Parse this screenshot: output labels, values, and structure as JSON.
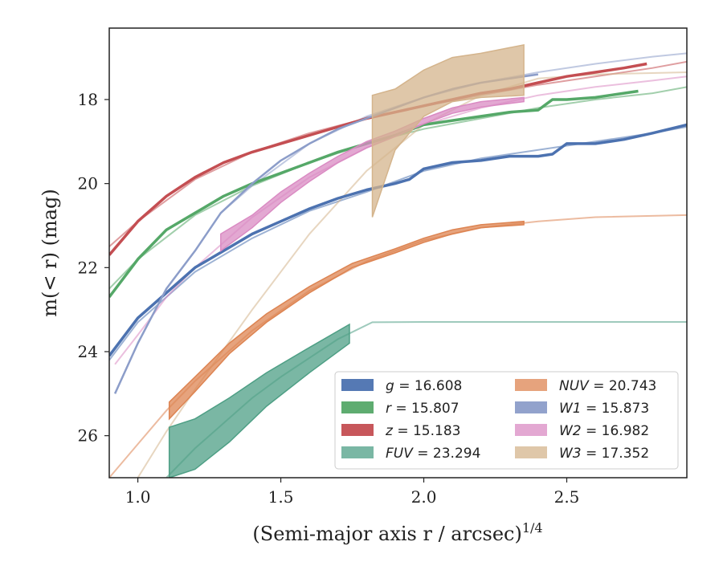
{
  "chart_data": {
    "type": "line",
    "xlabel": "(Semi-major axis r / arcsec)",
    "xlabel_sup": "1/4",
    "ylabel": "m(< r) (mag)",
    "xlim": [
      0.9,
      2.92
    ],
    "ylim": [
      27.0,
      16.3
    ],
    "y_inverted": true,
    "xticks": [
      1.0,
      1.5,
      2.0,
      2.5
    ],
    "xtick_labels": [
      "1.0",
      "1.5",
      "2.0",
      "2.5"
    ],
    "yticks": [
      18,
      20,
      22,
      24,
      26
    ],
    "ytick_labels": [
      "18",
      "20",
      "22",
      "24",
      "26"
    ],
    "legend_position": "bottom-right",
    "series": [
      {
        "name": "g = 16.608",
        "band": "g",
        "value": "16.608",
        "color": "#4c72b0",
        "kind": "line",
        "x": [
          0.9,
          1.0,
          1.1,
          1.2,
          1.3,
          1.4,
          1.5,
          1.6,
          1.7,
          1.8,
          1.9,
          1.95,
          2.0,
          2.1,
          2.2,
          2.3,
          2.4,
          2.45,
          2.5,
          2.6,
          2.7,
          2.8,
          2.92
        ],
        "y": [
          24.1,
          23.2,
          22.6,
          22.0,
          21.6,
          21.2,
          20.9,
          20.6,
          20.35,
          20.15,
          20.0,
          19.9,
          19.65,
          19.5,
          19.45,
          19.35,
          19.35,
          19.3,
          19.05,
          19.05,
          18.95,
          18.8,
          18.6
        ],
        "model_x": [
          0.9,
          1.0,
          1.2,
          1.4,
          1.6,
          1.8,
          2.0,
          2.2,
          2.4,
          2.6,
          2.8,
          2.92
        ],
        "model_y": [
          24.2,
          23.3,
          22.1,
          21.3,
          20.65,
          20.2,
          19.7,
          19.4,
          19.2,
          19.0,
          18.8,
          18.65
        ]
      },
      {
        "name": "r = 15.807",
        "band": "r",
        "value": "15.807",
        "color": "#55a868",
        "kind": "line",
        "x": [
          0.9,
          1.0,
          1.1,
          1.2,
          1.3,
          1.4,
          1.5,
          1.6,
          1.7,
          1.8,
          1.9,
          2.0,
          2.1,
          2.2,
          2.3,
          2.4,
          2.45,
          2.5,
          2.6,
          2.7,
          2.75
        ],
        "y": [
          22.7,
          21.8,
          21.1,
          20.7,
          20.3,
          20.0,
          19.75,
          19.5,
          19.25,
          19.05,
          18.85,
          18.6,
          18.5,
          18.4,
          18.3,
          18.25,
          18.0,
          18.0,
          17.95,
          17.85,
          17.8
        ],
        "model_x": [
          0.9,
          1.0,
          1.2,
          1.4,
          1.6,
          1.8,
          2.0,
          2.2,
          2.4,
          2.6,
          2.8,
          2.92
        ],
        "model_y": [
          22.5,
          21.8,
          20.75,
          20.05,
          19.5,
          19.05,
          18.7,
          18.45,
          18.2,
          18.0,
          17.85,
          17.7
        ]
      },
      {
        "name": "z = 15.183",
        "band": "z",
        "value": "15.183",
        "color": "#c44e52",
        "kind": "line",
        "x": [
          0.9,
          1.0,
          1.1,
          1.2,
          1.3,
          1.4,
          1.5,
          1.6,
          1.7,
          1.8,
          1.9,
          2.0,
          2.1,
          2.2,
          2.3,
          2.4,
          2.5,
          2.6,
          2.7,
          2.78
        ],
        "y": [
          21.7,
          20.9,
          20.3,
          19.85,
          19.5,
          19.25,
          19.05,
          18.85,
          18.65,
          18.45,
          18.3,
          18.15,
          18.0,
          17.85,
          17.75,
          17.6,
          17.45,
          17.35,
          17.25,
          17.15
        ],
        "model_x": [
          0.9,
          1.0,
          1.2,
          1.4,
          1.6,
          1.8,
          2.0,
          2.2,
          2.4,
          2.6,
          2.8,
          2.92
        ],
        "model_y": [
          21.5,
          20.9,
          19.9,
          19.25,
          18.8,
          18.45,
          18.15,
          17.9,
          17.65,
          17.45,
          17.25,
          17.1
        ]
      },
      {
        "name": "FUV = 23.294",
        "band": "FUV",
        "value": "23.294",
        "color": "#4e9f85",
        "kind": "band",
        "x": [
          1.11,
          1.2,
          1.32,
          1.45,
          1.6,
          1.74
        ],
        "y_upper": [
          25.8,
          25.6,
          25.1,
          24.5,
          23.9,
          23.35
        ],
        "y_lower": [
          27.0,
          26.8,
          26.15,
          25.3,
          24.5,
          23.8
        ],
        "model_x": [
          1.1,
          1.2,
          1.3,
          1.4,
          1.5,
          1.6,
          1.7,
          1.82,
          2.0,
          2.5,
          2.92
        ],
        "model_y": [
          27.0,
          26.3,
          25.7,
          25.1,
          24.6,
          24.15,
          23.7,
          23.3,
          23.294,
          23.294,
          23.294
        ]
      },
      {
        "name": "NUV = 20.743",
        "band": "NUV",
        "value": "20.743",
        "color": "#dd8452",
        "kind": "band",
        "x": [
          1.11,
          1.2,
          1.32,
          1.45,
          1.6,
          1.75,
          1.9,
          2.0,
          2.1,
          2.2,
          2.35
        ],
        "y_upper": [
          25.2,
          24.6,
          23.8,
          23.1,
          22.45,
          21.9,
          21.55,
          21.3,
          21.1,
          20.98,
          20.9
        ],
        "y_lower": [
          25.6,
          24.95,
          24.05,
          23.3,
          22.6,
          22.0,
          21.65,
          21.4,
          21.2,
          21.05,
          20.98
        ],
        "model_x": [
          0.9,
          1.0,
          1.1,
          1.2,
          1.4,
          1.6,
          1.8,
          2.0,
          2.2,
          2.4,
          2.6,
          2.92
        ],
        "model_y": [
          27.0,
          26.2,
          25.4,
          24.7,
          23.5,
          22.55,
          21.85,
          21.35,
          21.05,
          20.9,
          20.8,
          20.75
        ]
      },
      {
        "name": "W1 = 15.873",
        "band": "W1",
        "value": "15.873",
        "color": "#8c9dc9",
        "kind": "line",
        "x": [
          0.92,
          1.0,
          1.1,
          1.2,
          1.29,
          1.4,
          1.5,
          1.6,
          1.7,
          1.8,
          1.9,
          2.0,
          2.1,
          2.2,
          2.3,
          2.4
        ],
        "y": [
          25.0,
          23.8,
          22.5,
          21.6,
          20.7,
          20.0,
          19.45,
          19.05,
          18.7,
          18.45,
          18.2,
          17.95,
          17.75,
          17.6,
          17.5,
          17.4
        ],
        "model_x": [
          1.29,
          1.4,
          1.6,
          1.8,
          2.0,
          2.2,
          2.4,
          2.6,
          2.8,
          2.92
        ],
        "model_y": [
          20.7,
          20.05,
          19.05,
          18.4,
          17.95,
          17.6,
          17.35,
          17.15,
          16.98,
          16.9
        ]
      },
      {
        "name": "W2 = 16.982",
        "band": "W2",
        "value": "16.982",
        "color": "#da8bc3",
        "kind": "band",
        "x": [
          1.29,
          1.4,
          1.5,
          1.6,
          1.7,
          1.8,
          1.9,
          2.0,
          2.1,
          2.2,
          2.35
        ],
        "y_upper": [
          21.2,
          20.75,
          20.2,
          19.75,
          19.35,
          19.0,
          18.75,
          18.45,
          18.2,
          18.05,
          17.95
        ],
        "y_lower": [
          21.6,
          21.05,
          20.45,
          19.95,
          19.5,
          19.15,
          18.88,
          18.58,
          18.33,
          18.18,
          18.05
        ],
        "model_x": [
          0.92,
          1.0,
          1.1,
          1.2,
          1.3,
          1.4,
          1.6,
          1.8,
          2.0,
          2.2,
          2.4,
          2.6,
          2.8,
          2.92
        ],
        "model_y": [
          24.3,
          23.6,
          22.7,
          22.0,
          21.4,
          20.8,
          19.85,
          19.15,
          18.6,
          18.2,
          17.9,
          17.7,
          17.55,
          17.45
        ]
      },
      {
        "name": "W3 = 17.352",
        "band": "W3",
        "value": "17.352",
        "color": "#d4b48c",
        "kind": "band",
        "x": [
          1.82,
          1.9,
          2.0,
          2.1,
          2.2,
          2.35
        ],
        "y_upper": [
          17.9,
          17.75,
          17.3,
          17.0,
          16.9,
          16.7
        ],
        "y_lower": [
          20.8,
          19.2,
          18.4,
          18.05,
          17.95,
          17.9
        ],
        "model_x": [
          1.0,
          1.1,
          1.2,
          1.4,
          1.6,
          1.8,
          2.0,
          2.2,
          2.4,
          2.6,
          2.92
        ],
        "model_y": [
          27.0,
          25.9,
          24.9,
          23.0,
          21.2,
          19.7,
          18.6,
          17.9,
          17.5,
          17.4,
          17.35
        ]
      }
    ],
    "legend": [
      {
        "label": "g",
        "value": "16.608"
      },
      {
        "label": "r",
        "value": "15.807"
      },
      {
        "label": "z",
        "value": "15.183"
      },
      {
        "label": "FUV",
        "value": "23.294"
      },
      {
        "label": "NUV",
        "value": "20.743"
      },
      {
        "label": "W1",
        "value": "15.873"
      },
      {
        "label": "W2",
        "value": "16.982"
      },
      {
        "label": "W3",
        "value": "17.352"
      }
    ]
  }
}
